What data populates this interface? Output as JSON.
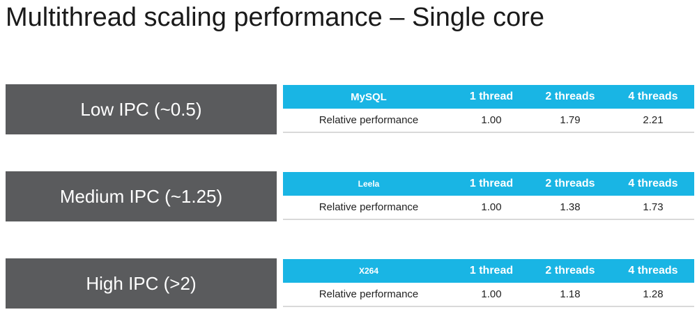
{
  "slide": {
    "title": "Multithread scaling performance – Single core"
  },
  "rows": [
    {
      "ipc_label": "Low IPC (~0.5)",
      "benchmark": "MySQL",
      "headers": [
        "1 thread",
        "2 threads",
        "4 threads"
      ],
      "metric_label": "Relative performance",
      "values": [
        "1.00",
        "1.79",
        "2.21"
      ]
    },
    {
      "ipc_label": "Medium IPC (~1.25)",
      "benchmark": "Leela",
      "headers": [
        "1 thread",
        "2 threads",
        "4 threads"
      ],
      "metric_label": "Relative performance",
      "values": [
        "1.00",
        "1.38",
        "1.73"
      ]
    },
    {
      "ipc_label": "High IPC (>2)",
      "benchmark": "X264",
      "headers": [
        "1 thread",
        "2 threads",
        "4 threads"
      ],
      "metric_label": "Relative performance",
      "values": [
        "1.00",
        "1.18",
        "1.28"
      ]
    }
  ],
  "colors": {
    "ipc_box": "#5a5b5d",
    "table_header": "#19b5e4",
    "row_rule": "#d9d9d9"
  }
}
